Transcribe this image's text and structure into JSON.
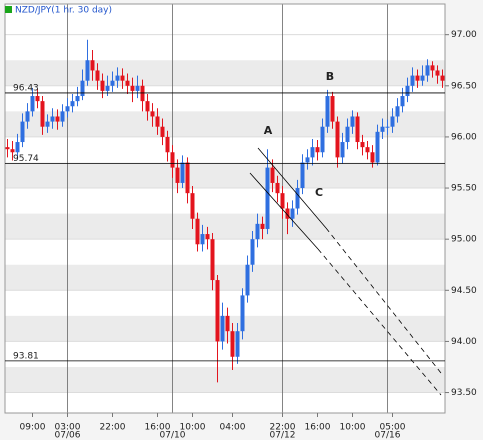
{
  "chart_data": {
    "type": "candlestick",
    "title": "NZD/JPY(1 hr. 30 day)",
    "categories": [
      null,
      null,
      null,
      null,
      null,
      null,
      null,
      null,
      null,
      null,
      null,
      null,
      null,
      null,
      null,
      null,
      null,
      null,
      null,
      null,
      null,
      null,
      null,
      null,
      null,
      null,
      null,
      null,
      null,
      null,
      null,
      null,
      null,
      null,
      null,
      null,
      null,
      null,
      null,
      null,
      null,
      null,
      null,
      null,
      null,
      null,
      null,
      null,
      null,
      null,
      null,
      null,
      null,
      null,
      null,
      null,
      null,
      null,
      null,
      null,
      null,
      null,
      null,
      null,
      null,
      null,
      null,
      null,
      null,
      null,
      null,
      null,
      null,
      null,
      null,
      null,
      null,
      null,
      null,
      null,
      null,
      null,
      null,
      null,
      null,
      null,
      null,
      null
    ],
    "open": [
      95.9,
      95.88,
      95.85,
      95.95,
      96.15,
      96.25,
      96.4,
      96.35,
      96.1,
      96.15,
      96.2,
      96.15,
      96.25,
      96.3,
      96.35,
      96.4,
      96.55,
      96.75,
      96.65,
      96.55,
      96.45,
      96.5,
      96.55,
      96.6,
      96.55,
      96.5,
      96.45,
      96.5,
      96.35,
      96.25,
      96.2,
      96.1,
      96.0,
      95.85,
      95.7,
      95.55,
      95.75,
      95.45,
      95.2,
      94.95,
      95.05,
      95.0,
      94.6,
      94.0,
      94.25,
      94.1,
      93.85,
      94.1,
      94.45,
      94.75,
      95.0,
      95.15,
      95.1,
      95.7,
      95.55,
      95.45,
      95.3,
      95.2,
      95.3,
      95.5,
      95.75,
      95.8,
      95.9,
      95.85,
      96.1,
      96.4,
      96.15,
      95.8,
      95.95,
      96.1,
      96.2,
      95.95,
      95.9,
      95.85,
      95.75,
      96.05,
      96.1,
      96.1,
      96.2,
      96.3,
      96.4,
      96.5,
      96.6,
      96.55,
      96.6,
      96.7,
      96.65,
      96.6
    ],
    "high": [
      95.98,
      95.96,
      96.03,
      96.23,
      96.33,
      96.48,
      96.47,
      96.4,
      96.22,
      96.28,
      96.27,
      96.32,
      96.38,
      96.42,
      96.49,
      96.66,
      96.95,
      96.85,
      96.72,
      96.62,
      96.6,
      96.64,
      96.68,
      96.67,
      96.62,
      96.58,
      96.6,
      96.56,
      96.42,
      96.33,
      96.28,
      96.18,
      96.06,
      95.92,
      95.78,
      95.82,
      95.8,
      95.52,
      95.26,
      95.14,
      95.12,
      95.06,
      94.65,
      94.38,
      94.33,
      94.18,
      94.18,
      94.52,
      94.84,
      95.08,
      95.25,
      95.22,
      95.88,
      95.78,
      95.62,
      95.52,
      95.36,
      95.38,
      95.58,
      95.83,
      95.88,
      95.98,
      95.97,
      96.18,
      96.46,
      96.44,
      96.2,
      96.04,
      96.18,
      96.26,
      96.24,
      96.02,
      95.96,
      95.92,
      96.12,
      96.18,
      96.17,
      96.28,
      96.38,
      96.48,
      96.58,
      96.68,
      96.66,
      96.7,
      96.76,
      96.74,
      96.7,
      96.66
    ],
    "low": [
      95.8,
      95.77,
      95.78,
      95.9,
      96.08,
      96.2,
      96.28,
      96.02,
      96.04,
      96.08,
      96.07,
      96.1,
      96.19,
      96.24,
      96.3,
      96.36,
      96.5,
      96.55,
      96.46,
      96.38,
      96.4,
      96.44,
      96.48,
      96.47,
      96.42,
      96.34,
      96.38,
      96.25,
      96.16,
      96.1,
      96.02,
      95.92,
      95.76,
      95.6,
      95.45,
      95.5,
      95.35,
      95.1,
      94.88,
      94.88,
      94.9,
      94.5,
      93.6,
      93.92,
      93.98,
      93.72,
      93.78,
      94.02,
      94.38,
      94.68,
      94.92,
      95.0,
      95.05,
      95.46,
      95.36,
      95.2,
      95.05,
      95.12,
      95.24,
      95.44,
      95.68,
      95.72,
      95.77,
      95.8,
      96.04,
      96.08,
      95.7,
      95.74,
      95.88,
      96.03,
      95.88,
      95.82,
      95.78,
      95.7,
      95.72,
      95.98,
      96.02,
      96.04,
      96.14,
      96.24,
      96.34,
      96.44,
      96.48,
      96.5,
      96.54,
      96.58,
      96.52,
      96.48
    ],
    "close": [
      95.88,
      95.85,
      95.95,
      96.15,
      96.25,
      96.4,
      96.35,
      96.1,
      96.15,
      96.2,
      96.15,
      96.25,
      96.3,
      96.35,
      96.4,
      96.55,
      96.75,
      96.65,
      96.55,
      96.45,
      96.5,
      96.55,
      96.6,
      96.55,
      96.5,
      96.45,
      96.5,
      96.35,
      96.25,
      96.2,
      96.1,
      96.0,
      95.85,
      95.7,
      95.55,
      95.75,
      95.45,
      95.2,
      94.95,
      95.05,
      95.0,
      94.6,
      94.0,
      94.25,
      94.1,
      93.85,
      94.1,
      94.45,
      94.75,
      95.0,
      95.15,
      95.1,
      95.7,
      95.55,
      95.45,
      95.3,
      95.2,
      95.3,
      95.5,
      95.75,
      95.8,
      95.9,
      95.85,
      96.1,
      96.4,
      96.15,
      95.8,
      95.95,
      96.1,
      96.2,
      95.95,
      95.9,
      95.85,
      95.75,
      96.05,
      96.1,
      96.1,
      96.2,
      96.3,
      96.4,
      96.5,
      96.6,
      96.55,
      96.6,
      96.7,
      96.65,
      96.6,
      96.55
    ],
    "up_color": "#2f6fe0",
    "down_color": "#e3141e",
    "ylim": [
      93.3,
      97.3
    ],
    "yticks": [
      {
        "value": 93.5,
        "label": "93.50"
      },
      {
        "value": 94,
        "label": "94.00"
      },
      {
        "value": 94.5,
        "label": "94.50"
      },
      {
        "value": 95,
        "label": "95.00"
      },
      {
        "value": 95.5,
        "label": "95.50"
      },
      {
        "value": 96,
        "label": "96.00"
      },
      {
        "value": 96.5,
        "label": "96.50"
      },
      {
        "value": 97,
        "label": "97.00"
      }
    ],
    "xticks": [
      {
        "value": 5,
        "label": "09:00"
      },
      {
        "value": 12,
        "label": "03:00"
      },
      {
        "value": 21,
        "label": "22:00"
      },
      {
        "value": 30,
        "label": "16:00"
      },
      {
        "value": 37,
        "label": "10:00"
      },
      {
        "value": 45,
        "label": "04:00"
      },
      {
        "value": 55,
        "label": "22:00"
      },
      {
        "value": 62,
        "label": "16:00"
      },
      {
        "value": 69,
        "label": "10:00"
      },
      {
        "value": 77,
        "label": "05:00"
      }
    ],
    "date_ticks": [
      {
        "value": 12,
        "label": "07/06"
      },
      {
        "value": 33,
        "label": "07/10"
      },
      {
        "value": 55,
        "label": "07/12"
      },
      {
        "value": 76,
        "label": "07/16"
      }
    ],
    "hlines": [
      96.43,
      95.74,
      93.81
    ],
    "annotations": [
      "A",
      "B",
      "C"
    ],
    "grid": true
  }
}
